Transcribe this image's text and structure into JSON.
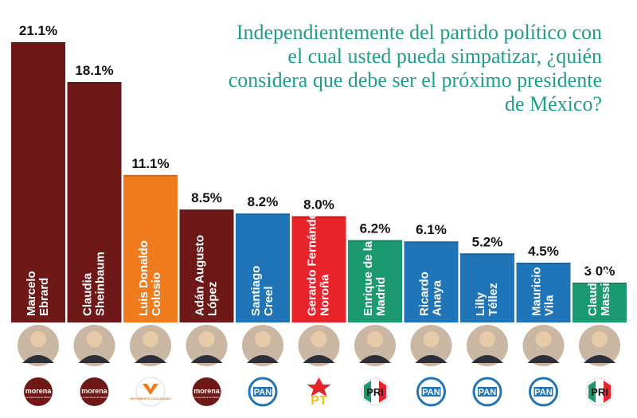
{
  "question": "Independientemente del partido político con el cual usted pueda simpatizar, ¿quién considera que debe ser el próximo presidente de México?",
  "chart_data": {
    "type": "bar",
    "unit": "%",
    "categories": [
      [
        "Marcelo",
        "Ebrard"
      ],
      [
        "Claudia",
        "Sheinbaum"
      ],
      [
        "Luis Donaldo",
        "Colosio"
      ],
      [
        "Adán Augusto",
        "López"
      ],
      [
        "Santiago",
        "Creel"
      ],
      [
        "Gerardo Fernández",
        "Noroña"
      ],
      [
        "Enrique de la",
        "Madrid"
      ],
      [
        "Ricardo",
        "Anaya"
      ],
      [
        "Lilly",
        "Téllez"
      ],
      [
        "Mauricio",
        "Vila"
      ],
      [
        "Claudia Ruiz",
        "Massieu"
      ]
    ],
    "values": [
      21.1,
      18.1,
      11.1,
      8.5,
      8.2,
      8.0,
      6.2,
      6.1,
      5.2,
      4.5,
      3.0
    ],
    "value_labels": [
      "21.1%",
      "18.1%",
      "11.1%",
      "8.5%",
      "8.2%",
      "8.0%",
      "6.2%",
      "6.1%",
      "5.2%",
      "4.5%",
      "3.0%"
    ],
    "parties": [
      "morena",
      "morena",
      "mc",
      "morena",
      "pan",
      "pt",
      "pri",
      "pan",
      "pan",
      "pan",
      "pri"
    ],
    "ylim": [
      0,
      21.1
    ]
  },
  "party_logos": {
    "morena": {
      "name": "morena",
      "tagline": "La esperanza de México",
      "color": "#6e1818"
    },
    "mc": {
      "name": "MOVIMIENTO CIUDADANO",
      "color": "#f07c1e"
    },
    "pan": {
      "name": "PAN",
      "color": "#1f75b8"
    },
    "pt": {
      "name": "PT",
      "color": "#e8232a"
    },
    "pri": {
      "name": "PRI",
      "color": "#1b9a71"
    }
  },
  "colors": {
    "morena": "#6e1818",
    "mc": "#f07c1e",
    "pan": "#1f75b8",
    "pt": "#e8232a",
    "pri": "#1b9a71",
    "title": "#1f9e86"
  }
}
